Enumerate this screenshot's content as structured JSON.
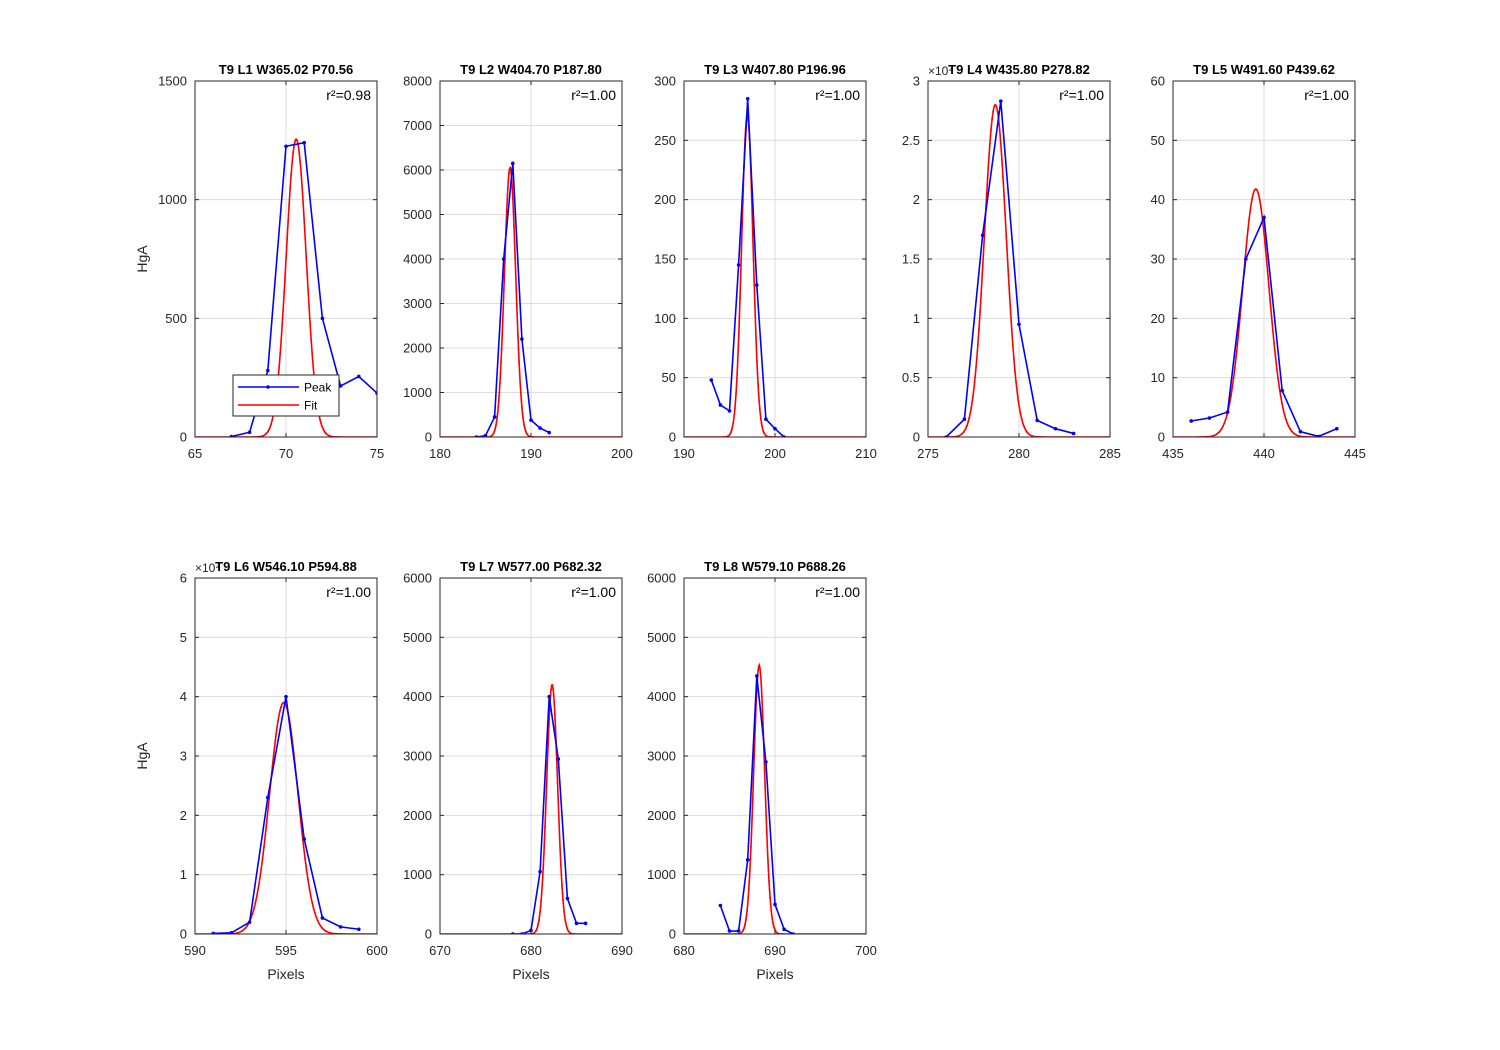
{
  "chart_data": [
    {
      "type": "line",
      "title": "T9 L1 W365.02 P70.56",
      "xlabel": "",
      "ylabel": "HgA",
      "xlim": [
        65,
        75
      ],
      "ylim": [
        0,
        1500
      ],
      "xticks": [
        65,
        70,
        75
      ],
      "yticks": [
        0,
        500,
        1000,
        1500
      ],
      "exponent": "",
      "r2": "r²=0.98",
      "peak_position": 70.56,
      "fit": {
        "amplitude": 1255,
        "center": 70.56,
        "sigma": 0.55
      },
      "grid": true,
      "legend": {
        "position": "bottom-left",
        "entries": [
          "Peak",
          "Fit"
        ]
      },
      "series": [
        {
          "name": "Peak",
          "color": "#0000ff",
          "x": [
            67,
            68,
            69,
            70,
            71,
            72,
            73,
            74,
            75
          ],
          "y": [
            2,
            20,
            280,
            1225,
            1240,
            500,
            215,
            255,
            185
          ]
        },
        {
          "name": "Fit",
          "color": "#ff0000"
        }
      ]
    },
    {
      "type": "line",
      "title": "T9 L2 W404.70 P187.80",
      "xlabel": "",
      "ylabel": "",
      "xlim": [
        180,
        200
      ],
      "ylim": [
        0,
        8000
      ],
      "xticks": [
        180,
        190,
        200
      ],
      "yticks": [
        0,
        1000,
        2000,
        3000,
        4000,
        5000,
        6000,
        7000,
        8000
      ],
      "exponent": "",
      "r2": "r²=1.00",
      "peak_position": 187.8,
      "fit": {
        "amplitude": 6050,
        "center": 187.7,
        "sigma": 0.62
      },
      "grid": true,
      "series": [
        {
          "name": "Peak",
          "color": "#0000ff",
          "x": [
            184,
            185,
            186,
            187,
            188,
            189,
            190,
            191,
            192
          ],
          "y": [
            0,
            30,
            450,
            4000,
            6150,
            2200,
            380,
            200,
            100
          ]
        },
        {
          "name": "Fit",
          "color": "#ff0000"
        }
      ]
    },
    {
      "type": "line",
      "title": "T9 L3 W407.80 P196.96",
      "xlabel": "",
      "ylabel": "",
      "xlim": [
        190,
        210
      ],
      "ylim": [
        0,
        300
      ],
      "xticks": [
        190,
        200,
        210
      ],
      "yticks": [
        0,
        50,
        100,
        150,
        200,
        250,
        300
      ],
      "exponent": "",
      "r2": "r²=1.00",
      "peak_position": 196.96,
      "fit": {
        "amplitude": 272,
        "center": 196.96,
        "sigma": 0.62
      },
      "grid": true,
      "series": [
        {
          "name": "Peak",
          "color": "#0000ff",
          "x": [
            193,
            194,
            195,
            196,
            197,
            198,
            199,
            200,
            201
          ],
          "y": [
            48,
            27,
            22,
            145,
            285,
            128,
            15,
            7,
            0
          ]
        },
        {
          "name": "Fit",
          "color": "#ff0000"
        }
      ]
    },
    {
      "type": "line",
      "title": "T9 L4 W435.80 P278.82",
      "xlabel": "",
      "ylabel": "",
      "xlim": [
        275,
        285
      ],
      "ylim": [
        0,
        3
      ],
      "xticks": [
        275,
        280,
        285
      ],
      "yticks": [
        0,
        0.5,
        1,
        1.5,
        2,
        2.5,
        3
      ],
      "exponent": "×10⁴",
      "r2": "r²=1.00",
      "peak_position": 278.82,
      "fit": {
        "amplitude": 2.8,
        "center": 278.7,
        "sigma": 0.6
      },
      "grid": true,
      "series": [
        {
          "name": "Peak",
          "color": "#0000ff",
          "x": [
            276,
            277,
            278,
            279,
            280,
            281,
            282,
            283
          ],
          "y": [
            0,
            0.15,
            1.7,
            2.83,
            0.95,
            0.14,
            0.07,
            0.03
          ]
        },
        {
          "name": "Fit",
          "color": "#ff0000"
        }
      ]
    },
    {
      "type": "line",
      "title": "T9 L5 W491.60 P439.62",
      "xlabel": "",
      "ylabel": "",
      "xlim": [
        435,
        445
      ],
      "ylim": [
        0,
        60
      ],
      "xticks": [
        435,
        440,
        445
      ],
      "yticks": [
        0,
        10,
        20,
        30,
        40,
        50,
        60
      ],
      "exponent": "",
      "r2": "r²=1.00",
      "peak_position": 439.62,
      "fit": {
        "amplitude": 41.8,
        "center": 439.55,
        "sigma": 0.72
      },
      "grid": true,
      "series": [
        {
          "name": "Peak",
          "color": "#0000ff",
          "x": [
            436,
            437,
            438,
            439,
            440,
            441,
            442,
            443,
            444
          ],
          "y": [
            2.7,
            3.2,
            4.2,
            30,
            37,
            7.8,
            0.9,
            0.1,
            1.4
          ]
        },
        {
          "name": "Fit",
          "color": "#ff0000"
        }
      ]
    },
    {
      "type": "line",
      "title": "T9 L6 W546.10 P594.88",
      "xlabel": "Pixels",
      "ylabel": "HgA",
      "xlim": [
        590,
        600
      ],
      "ylim": [
        0,
        6
      ],
      "xticks": [
        590,
        595,
        600
      ],
      "yticks": [
        0,
        1,
        2,
        3,
        4,
        5,
        6
      ],
      "exponent": "×10⁴",
      "r2": "r²=1.00",
      "peak_position": 594.88,
      "fit": {
        "amplitude": 3.9,
        "center": 594.88,
        "sigma": 0.78
      },
      "grid": true,
      "series": [
        {
          "name": "Peak",
          "color": "#0000ff",
          "x": [
            591,
            592,
            593,
            594,
            595,
            596,
            597,
            598,
            599
          ],
          "y": [
            0.01,
            0.02,
            0.2,
            2.3,
            4.0,
            1.6,
            0.27,
            0.12,
            0.08
          ]
        },
        {
          "name": "Fit",
          "color": "#ff0000"
        }
      ]
    },
    {
      "type": "line",
      "title": "T9 L7 W577.00 P682.32",
      "xlabel": "Pixels",
      "ylabel": "",
      "xlim": [
        670,
        690
      ],
      "ylim": [
        0,
        6000
      ],
      "xticks": [
        670,
        680,
        690
      ],
      "yticks": [
        0,
        1000,
        2000,
        3000,
        4000,
        5000,
        6000
      ],
      "exponent": "",
      "r2": "r²=1.00",
      "peak_position": 682.32,
      "fit": {
        "amplitude": 4200,
        "center": 682.32,
        "sigma": 0.6
      },
      "grid": true,
      "series": [
        {
          "name": "Peak",
          "color": "#0000ff",
          "x": [
            678,
            679,
            680,
            681,
            682,
            683,
            684,
            685,
            686
          ],
          "y": [
            0,
            0,
            60,
            1050,
            4000,
            2950,
            600,
            180,
            180
          ]
        },
        {
          "name": "Fit",
          "color": "#ff0000"
        }
      ]
    },
    {
      "type": "line",
      "title": "T9 L8 W579.10 P688.26",
      "xlabel": "Pixels",
      "ylabel": "",
      "xlim": [
        680,
        700
      ],
      "ylim": [
        0,
        6000
      ],
      "xticks": [
        680,
        690,
        700
      ],
      "yticks": [
        0,
        1000,
        2000,
        3000,
        4000,
        5000,
        6000
      ],
      "exponent": "",
      "r2": "r²=1.00",
      "peak_position": 688.26,
      "fit": {
        "amplitude": 4530,
        "center": 688.26,
        "sigma": 0.6
      },
      "grid": true,
      "series": [
        {
          "name": "Peak",
          "color": "#0000ff",
          "x": [
            684,
            685,
            686,
            687,
            688,
            689,
            690,
            691,
            692
          ],
          "y": [
            480,
            50,
            50,
            1250,
            4350,
            2900,
            500,
            80,
            0
          ]
        },
        {
          "name": "Fit",
          "color": "#ff0000"
        }
      ]
    }
  ]
}
